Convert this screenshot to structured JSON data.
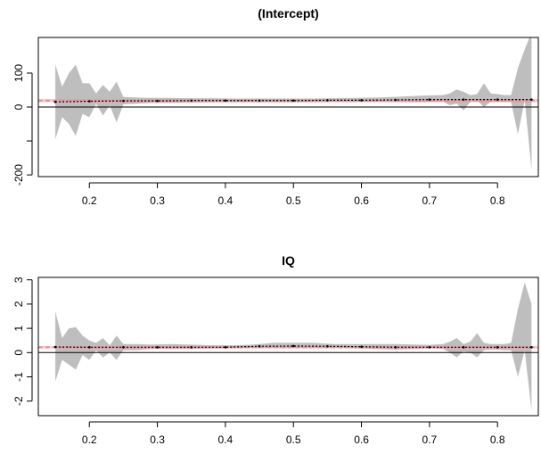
{
  "chart_data": [
    {
      "type": "line",
      "title": "(Intercept)",
      "xlabel": "",
      "ylabel": "",
      "xlim": [
        0.125,
        0.86
      ],
      "ylim": [
        -205,
        205
      ],
      "x_ticks": [
        0.2,
        0.3,
        0.4,
        0.5,
        0.6,
        0.7,
        0.8
      ],
      "x_tick_labels": [
        "0.2",
        "0.3",
        "0.4",
        "0.5",
        "0.6",
        "0.7",
        "0.8"
      ],
      "y_ticks": [
        -200,
        -100,
        0,
        100
      ],
      "y_tick_labels": [
        "-200",
        "",
        "0",
        "100"
      ],
      "grid": false,
      "reference_lines": [
        {
          "kind": "zero",
          "y": 0,
          "color": "#000000"
        },
        {
          "kind": "ols_estimate",
          "y": 19,
          "color": "#e8919b",
          "style": "dashed"
        },
        {
          "kind": "ols_band",
          "y_low": 14,
          "y_high": 24,
          "color": "#e8919b"
        }
      ],
      "series": [
        {
          "kind": "ci_band",
          "color": "#bebebe",
          "x": [
            0.15,
            0.16,
            0.17,
            0.18,
            0.19,
            0.2,
            0.21,
            0.22,
            0.23,
            0.24,
            0.25,
            0.27,
            0.29,
            0.32,
            0.35,
            0.38,
            0.41,
            0.44,
            0.47,
            0.5,
            0.53,
            0.56,
            0.59,
            0.62,
            0.65,
            0.68,
            0.7,
            0.72,
            0.73,
            0.74,
            0.75,
            0.76,
            0.77,
            0.78,
            0.79,
            0.8,
            0.81,
            0.82,
            0.83,
            0.84,
            0.85
          ],
          "lower": [
            -95,
            -30,
            -50,
            -85,
            -20,
            -30,
            10,
            -25,
            5,
            -45,
            8,
            10,
            12,
            12,
            13,
            14,
            14,
            14,
            14,
            14,
            14,
            15,
            15,
            15,
            15,
            14,
            15,
            16,
            5,
            10,
            -10,
            15,
            20,
            0,
            15,
            15,
            15,
            15,
            -80,
            20,
            -185
          ],
          "upper": [
            125,
            60,
            100,
            125,
            70,
            70,
            40,
            65,
            45,
            75,
            30,
            28,
            27,
            27,
            26,
            26,
            25,
            25,
            25,
            25,
            25,
            26,
            27,
            28,
            30,
            33,
            34,
            35,
            40,
            52,
            45,
            35,
            38,
            70,
            40,
            38,
            35,
            35,
            115,
            170,
            220
          ]
        },
        {
          "kind": "estimate",
          "color": "#000000",
          "x": [
            0.15,
            0.2,
            0.25,
            0.3,
            0.35,
            0.4,
            0.45,
            0.5,
            0.55,
            0.6,
            0.65,
            0.7,
            0.75,
            0.8,
            0.85
          ],
          "y": [
            15,
            17,
            18,
            18,
            19,
            19,
            19,
            19,
            20,
            20,
            21,
            22,
            22,
            22,
            22
          ]
        }
      ]
    },
    {
      "type": "line",
      "title": "IQ",
      "xlabel": "",
      "ylabel": "",
      "xlim": [
        0.125,
        0.86
      ],
      "ylim": [
        -2.6,
        3.1
      ],
      "x_ticks": [
        0.2,
        0.3,
        0.4,
        0.5,
        0.6,
        0.7,
        0.8
      ],
      "x_tick_labels": [
        "0.2",
        "0.3",
        "0.4",
        "0.5",
        "0.6",
        "0.7",
        "0.8"
      ],
      "y_ticks": [
        -2,
        -1,
        0,
        1,
        2,
        3
      ],
      "y_tick_labels": [
        "-2",
        "-1",
        "0",
        "1",
        "2",
        "3"
      ],
      "grid": false,
      "reference_lines": [
        {
          "kind": "zero",
          "y": 0,
          "color": "#000000"
        },
        {
          "kind": "ols_estimate",
          "y": 0.22,
          "color": "#e8919b",
          "style": "dashed"
        },
        {
          "kind": "ols_band",
          "y_low": 0.17,
          "y_high": 0.27,
          "color": "#e8919b"
        }
      ],
      "series": [
        {
          "kind": "ci_band",
          "color": "#bebebe",
          "x": [
            0.15,
            0.16,
            0.17,
            0.18,
            0.19,
            0.2,
            0.21,
            0.22,
            0.23,
            0.24,
            0.25,
            0.27,
            0.29,
            0.32,
            0.35,
            0.38,
            0.41,
            0.44,
            0.47,
            0.5,
            0.53,
            0.56,
            0.59,
            0.62,
            0.65,
            0.68,
            0.7,
            0.72,
            0.73,
            0.74,
            0.75,
            0.76,
            0.77,
            0.78,
            0.79,
            0.8,
            0.81,
            0.82,
            0.83,
            0.84,
            0.85
          ],
          "lower": [
            -1.2,
            -0.3,
            -0.5,
            -0.7,
            -0.1,
            -0.3,
            0.1,
            -0.2,
            0.0,
            -0.3,
            0.1,
            0.1,
            0.15,
            0.15,
            0.15,
            0.17,
            0.18,
            0.2,
            0.2,
            0.2,
            0.2,
            0.2,
            0.18,
            0.15,
            0.12,
            0.15,
            0.18,
            0.15,
            0.0,
            -0.2,
            0.05,
            0.0,
            -0.2,
            0.1,
            0.12,
            0.12,
            0.1,
            0.1,
            -1.0,
            0.1,
            -2.4
          ],
          "upper": [
            1.7,
            0.6,
            1.0,
            1.05,
            0.7,
            0.5,
            0.4,
            0.6,
            0.3,
            0.7,
            0.35,
            0.35,
            0.33,
            0.35,
            0.33,
            0.3,
            0.3,
            0.33,
            0.4,
            0.4,
            0.4,
            0.35,
            0.35,
            0.35,
            0.35,
            0.33,
            0.32,
            0.35,
            0.45,
            0.6,
            0.35,
            0.45,
            0.8,
            0.4,
            0.35,
            0.35,
            0.35,
            0.4,
            1.8,
            2.9,
            2.0
          ]
        },
        {
          "kind": "estimate",
          "color": "#000000",
          "x": [
            0.15,
            0.2,
            0.25,
            0.3,
            0.35,
            0.4,
            0.45,
            0.5,
            0.55,
            0.6,
            0.65,
            0.7,
            0.75,
            0.8,
            0.85
          ],
          "y": [
            0.23,
            0.22,
            0.22,
            0.22,
            0.22,
            0.22,
            0.26,
            0.27,
            0.26,
            0.24,
            0.22,
            0.22,
            0.22,
            0.22,
            0.22
          ]
        }
      ]
    }
  ]
}
